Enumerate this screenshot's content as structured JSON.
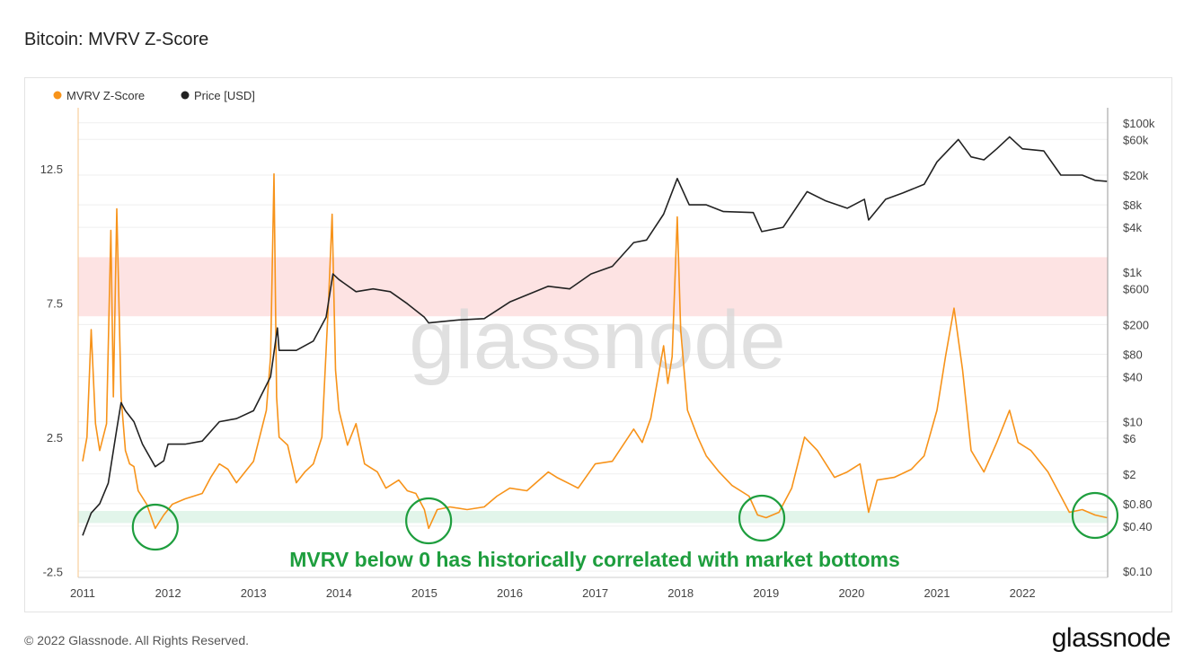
{
  "title": "Bitcoin: MVRV Z-Score",
  "footer": "© 2022 Glassnode. All Rights Reserved.",
  "logo": "glassnode",
  "watermark": "glassnode",
  "chart_data": {
    "type": "line",
    "title": "Bitcoin: MVRV Z-Score",
    "legend": [
      {
        "name": "MVRV Z-Score",
        "color": "#f7931a"
      },
      {
        "name": "Price [USD]",
        "color": "#222222"
      }
    ],
    "legend_position": "top-left",
    "x_ticks": [
      "2011",
      "2012",
      "2013",
      "2014",
      "2015",
      "2016",
      "2017",
      "2018",
      "2019",
      "2020",
      "2021",
      "2022"
    ],
    "y_left": {
      "ticks": [
        "12.5",
        "7.5",
        "2.5",
        "-2.5"
      ],
      "range": [
        -2.5,
        14.5
      ]
    },
    "y_right": {
      "scale": "log",
      "ticks": [
        "$100k",
        "$60k",
        "$20k",
        "$8k",
        "$4k",
        "$1k",
        "$600",
        "$200",
        "$80",
        "$40",
        "$10",
        "$6",
        "$2",
        "$0.80",
        "$0.40",
        "$0.10"
      ],
      "range": [
        0.1,
        100000
      ]
    },
    "bands": [
      {
        "name": "overvalued zone",
        "from": 7.0,
        "to": 9.2,
        "color": "#fde3e3"
      },
      {
        "name": "undervalued zone",
        "from": -0.7,
        "to": -0.25,
        "color": "#e2f5ea"
      }
    ],
    "annotation": {
      "text": "MVRV below 0 has historically correlated with market bottoms",
      "color": "#1e9e3e"
    },
    "circled_dates": [
      2011.85,
      2015.05,
      2018.95,
      2022.85
    ],
    "series": [
      {
        "name": "MVRV Z-Score",
        "axis": "left",
        "points": [
          [
            2011.0,
            1.6
          ],
          [
            2011.05,
            2.5
          ],
          [
            2011.1,
            6.5
          ],
          [
            2011.15,
            3.0
          ],
          [
            2011.2,
            2.0
          ],
          [
            2011.28,
            3.0
          ],
          [
            2011.33,
            10.2
          ],
          [
            2011.36,
            4
          ],
          [
            2011.4,
            11.0
          ],
          [
            2011.45,
            4
          ],
          [
            2011.5,
            2.0
          ],
          [
            2011.55,
            1.5
          ],
          [
            2011.6,
            1.4
          ],
          [
            2011.65,
            0.5
          ],
          [
            2011.75,
            0
          ],
          [
            2011.85,
            -0.9
          ],
          [
            2011.95,
            -0.4
          ],
          [
            2012.05,
            0
          ],
          [
            2012.2,
            0.2
          ],
          [
            2012.4,
            0.4
          ],
          [
            2012.5,
            1.0
          ],
          [
            2012.6,
            1.5
          ],
          [
            2012.7,
            1.3
          ],
          [
            2012.8,
            0.8
          ],
          [
            2012.9,
            1.2
          ],
          [
            2013.0,
            1.6
          ],
          [
            2013.15,
            3.5
          ],
          [
            2013.2,
            5.5
          ],
          [
            2013.24,
            12.3
          ],
          [
            2013.27,
            4
          ],
          [
            2013.3,
            2.5
          ],
          [
            2013.4,
            2.2
          ],
          [
            2013.5,
            0.8
          ],
          [
            2013.6,
            1.2
          ],
          [
            2013.7,
            1.5
          ],
          [
            2013.8,
            2.5
          ],
          [
            2013.88,
            7.7
          ],
          [
            2013.92,
            10.8
          ],
          [
            2013.96,
            5
          ],
          [
            2014.0,
            3.5
          ],
          [
            2014.1,
            2.2
          ],
          [
            2014.2,
            3
          ],
          [
            2014.3,
            1.5
          ],
          [
            2014.45,
            1.2
          ],
          [
            2014.55,
            0.6
          ],
          [
            2014.7,
            0.9
          ],
          [
            2014.8,
            0.5
          ],
          [
            2014.9,
            0.4
          ],
          [
            2015.0,
            -0.2
          ],
          [
            2015.05,
            -0.9
          ],
          [
            2015.15,
            -0.2
          ],
          [
            2015.3,
            -0.1
          ],
          [
            2015.5,
            -0.2
          ],
          [
            2015.7,
            -0.1
          ],
          [
            2015.85,
            0.3
          ],
          [
            2016.0,
            0.6
          ],
          [
            2016.2,
            0.5
          ],
          [
            2016.45,
            1.2
          ],
          [
            2016.55,
            1.0
          ],
          [
            2016.8,
            0.6
          ],
          [
            2017.0,
            1.5
          ],
          [
            2017.2,
            1.6
          ],
          [
            2017.45,
            2.8
          ],
          [
            2017.55,
            2.3
          ],
          [
            2017.65,
            3.2
          ],
          [
            2017.8,
            5.9
          ],
          [
            2017.85,
            4.5
          ],
          [
            2017.9,
            5.5
          ],
          [
            2017.96,
            10.7
          ],
          [
            2018.0,
            6.5
          ],
          [
            2018.08,
            3.5
          ],
          [
            2018.2,
            2.5
          ],
          [
            2018.3,
            1.8
          ],
          [
            2018.45,
            1.2
          ],
          [
            2018.6,
            0.7
          ],
          [
            2018.8,
            0.3
          ],
          [
            2018.9,
            -0.4
          ],
          [
            2019.0,
            -0.5
          ],
          [
            2019.15,
            -0.3
          ],
          [
            2019.3,
            0.6
          ],
          [
            2019.45,
            2.5
          ],
          [
            2019.6,
            2.0
          ],
          [
            2019.8,
            1.0
          ],
          [
            2019.95,
            1.2
          ],
          [
            2020.1,
            1.5
          ],
          [
            2020.2,
            -0.3
          ],
          [
            2020.3,
            0.9
          ],
          [
            2020.5,
            1.0
          ],
          [
            2020.7,
            1.3
          ],
          [
            2020.85,
            1.8
          ],
          [
            2021.0,
            3.5
          ],
          [
            2021.1,
            5.5
          ],
          [
            2021.2,
            7.3
          ],
          [
            2021.3,
            5.0
          ],
          [
            2021.4,
            2.0
          ],
          [
            2021.55,
            1.2
          ],
          [
            2021.7,
            2.3
          ],
          [
            2021.85,
            3.5
          ],
          [
            2021.95,
            2.3
          ],
          [
            2022.1,
            2.0
          ],
          [
            2022.3,
            1.2
          ],
          [
            2022.45,
            0.3
          ],
          [
            2022.55,
            -0.3
          ],
          [
            2022.7,
            -0.2
          ],
          [
            2022.85,
            -0.4
          ],
          [
            2022.99,
            -0.5
          ]
        ]
      },
      {
        "name": "Price [USD]",
        "axis": "right",
        "points": [
          [
            2011.0,
            0.3
          ],
          [
            2011.1,
            0.6
          ],
          [
            2011.2,
            0.8
          ],
          [
            2011.3,
            1.5
          ],
          [
            2011.4,
            8
          ],
          [
            2011.45,
            18
          ],
          [
            2011.5,
            14
          ],
          [
            2011.6,
            10
          ],
          [
            2011.7,
            5
          ],
          [
            2011.85,
            2.5
          ],
          [
            2011.95,
            3
          ],
          [
            2012.0,
            5
          ],
          [
            2012.2,
            5
          ],
          [
            2012.4,
            5.5
          ],
          [
            2012.6,
            10
          ],
          [
            2012.8,
            11
          ],
          [
            2013.0,
            14
          ],
          [
            2013.2,
            40
          ],
          [
            2013.28,
            180
          ],
          [
            2013.3,
            90
          ],
          [
            2013.5,
            90
          ],
          [
            2013.7,
            120
          ],
          [
            2013.85,
            250
          ],
          [
            2013.93,
            950
          ],
          [
            2014.0,
            800
          ],
          [
            2014.2,
            550
          ],
          [
            2014.4,
            600
          ],
          [
            2014.6,
            550
          ],
          [
            2014.8,
            380
          ],
          [
            2015.0,
            250
          ],
          [
            2015.05,
            210
          ],
          [
            2015.4,
            230
          ],
          [
            2015.7,
            240
          ],
          [
            2016.0,
            400
          ],
          [
            2016.45,
            650
          ],
          [
            2016.7,
            600
          ],
          [
            2016.95,
            950
          ],
          [
            2017.2,
            1200
          ],
          [
            2017.45,
            2500
          ],
          [
            2017.6,
            2700
          ],
          [
            2017.8,
            6000
          ],
          [
            2017.96,
            18000
          ],
          [
            2018.1,
            8000
          ],
          [
            2018.3,
            8000
          ],
          [
            2018.5,
            6500
          ],
          [
            2018.85,
            6300
          ],
          [
            2018.95,
            3500
          ],
          [
            2019.2,
            4000
          ],
          [
            2019.48,
            12000
          ],
          [
            2019.7,
            9000
          ],
          [
            2019.95,
            7200
          ],
          [
            2020.15,
            9500
          ],
          [
            2020.2,
            5000
          ],
          [
            2020.4,
            9500
          ],
          [
            2020.6,
            11500
          ],
          [
            2020.85,
            15000
          ],
          [
            2021.0,
            30000
          ],
          [
            2021.25,
            60000
          ],
          [
            2021.4,
            35000
          ],
          [
            2021.55,
            32000
          ],
          [
            2021.7,
            45000
          ],
          [
            2021.85,
            65000
          ],
          [
            2022.0,
            45000
          ],
          [
            2022.25,
            42000
          ],
          [
            2022.45,
            20000
          ],
          [
            2022.7,
            20000
          ],
          [
            2022.85,
            17000
          ],
          [
            2022.99,
            16500
          ]
        ]
      }
    ]
  }
}
